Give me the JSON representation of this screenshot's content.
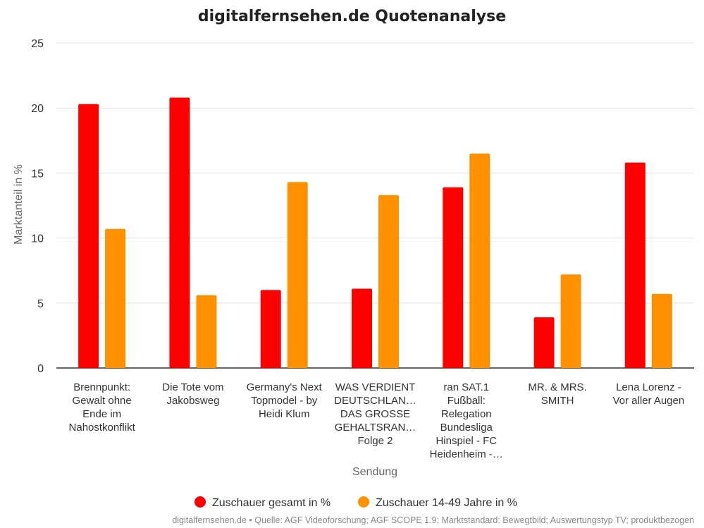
{
  "chart_data": {
    "type": "bar",
    "title": "digitalfernsehen.de Quotenanalyse",
    "xlabel": "Sendung",
    "ylabel": "Marktanteil in %",
    "ylim": [
      0,
      25
    ],
    "yticks": [
      0,
      5,
      10,
      15,
      20,
      25
    ],
    "grid": true,
    "legend_position": "bottom",
    "categories": [
      [
        "Brennpunkt:",
        "Gewalt ohne",
        "Ende im",
        "Nahostkonflikt"
      ],
      [
        "Die Tote vom",
        "Jakobsweg"
      ],
      [
        "Germany's Next",
        "Topmodel - by",
        "Heidi Klum"
      ],
      [
        "WAS VERDIENT",
        "DEUTSCHLAN…",
        "DAS GROSSE",
        "GEHALTSRAN…",
        "Folge 2"
      ],
      [
        "ran SAT.1",
        "Fußball:",
        "Relegation",
        "Bundesliga",
        "Hinspiel - FC",
        "Heidenheim -…"
      ],
      [
        "MR. & MRS.",
        "SMITH"
      ],
      [
        "Lena Lorenz -",
        "Vor aller Augen"
      ]
    ],
    "series": [
      {
        "name": "Zuschauer gesamt in %",
        "color": "#ff0000",
        "values": [
          20.3,
          20.8,
          6.0,
          6.1,
          13.9,
          3.9,
          15.8
        ]
      },
      {
        "name": "Zuschauer 14-49 Jahre in %",
        "color": "#ff9100",
        "values": [
          10.7,
          5.6,
          14.3,
          13.3,
          16.5,
          7.2,
          5.7
        ]
      }
    ]
  },
  "footer": "digitalfernsehen.de • Quelle: AGF Videoforschung; AGF SCOPE 1.9; Marktstandard: Bewegtbild; Auswertungstyp TV; produktbezogen"
}
